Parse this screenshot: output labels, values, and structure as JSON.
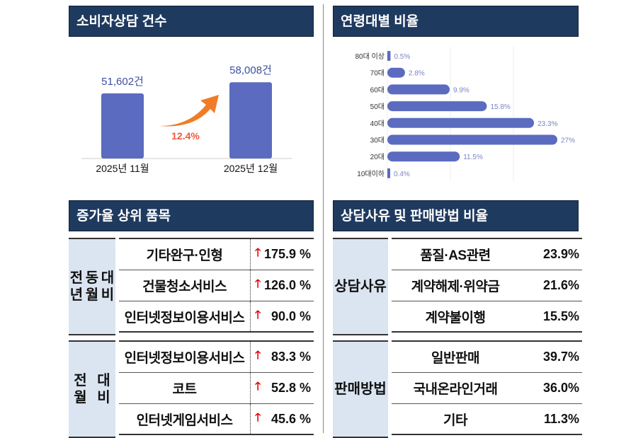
{
  "sections": {
    "counts_title": "소비자상담 건수",
    "age_title": "연령대별 비율",
    "increase_title": "증가율 상위 품목",
    "reason_title": "상담사유 및 판매방법 비율"
  },
  "chart_data": [
    {
      "type": "bar",
      "categories": [
        "2025년 11월",
        "2025년 12월"
      ],
      "values": [
        51602,
        58008
      ],
      "data_labels": [
        "51,602건",
        "58,008건"
      ],
      "annotation": "12.4%",
      "colors": {
        "bar": "#5b6bbf",
        "arrow": "#f07c2a",
        "annotation": "#ee5a3c"
      }
    },
    {
      "type": "bar",
      "orientation": "horizontal",
      "categories": [
        "80대 이상",
        "70대",
        "60대",
        "50대",
        "40대",
        "30대",
        "20대",
        "10대이하"
      ],
      "values": [
        0.5,
        2.8,
        9.9,
        15.8,
        23.3,
        27,
        11.5,
        0.4
      ],
      "data_labels": [
        "0.5%",
        "2.8%",
        "9.9%",
        "15.8%",
        "23.3%",
        "27%",
        "11.5%",
        "0.4%"
      ],
      "grid": true,
      "colors": {
        "bar": "#5b6bbf",
        "label": "#7b84c4"
      }
    }
  ],
  "increase_table": {
    "groups": [
      {
        "label": "전년\n동월\n대비",
        "rows": [
          {
            "item": "기타완구·인형",
            "value": "175.9 %"
          },
          {
            "item": "건물청소서비스",
            "value": "126.0 %"
          },
          {
            "item": "인터넷정보이용서비스",
            "value": "90.0 %"
          }
        ]
      },
      {
        "label": "전월\n대비",
        "rows": [
          {
            "item": "인터넷정보이용서비스",
            "value": "83.3 %"
          },
          {
            "item": "코트",
            "value": "52.8 %"
          },
          {
            "item": "인터넷게임서비스",
            "value": "45.6 %"
          }
        ]
      }
    ],
    "arrow_icon": "up-arrow-icon",
    "arrow_color": "#e00000"
  },
  "reason_table": {
    "groups": [
      {
        "label": "상담\n사유",
        "rows": [
          {
            "item": "품질·AS관련",
            "value": "23.9%"
          },
          {
            "item": "계약해제·위약금",
            "value": "21.6%"
          },
          {
            "item": "계약불이행",
            "value": "15.5%"
          }
        ]
      },
      {
        "label": "판매\n방법",
        "rows": [
          {
            "item": "일반판매",
            "value": "39.7%"
          },
          {
            "item": "국내온라인거래",
            "value": "36.0%"
          },
          {
            "item": "기타",
            "value": "11.3%"
          }
        ]
      }
    ]
  }
}
